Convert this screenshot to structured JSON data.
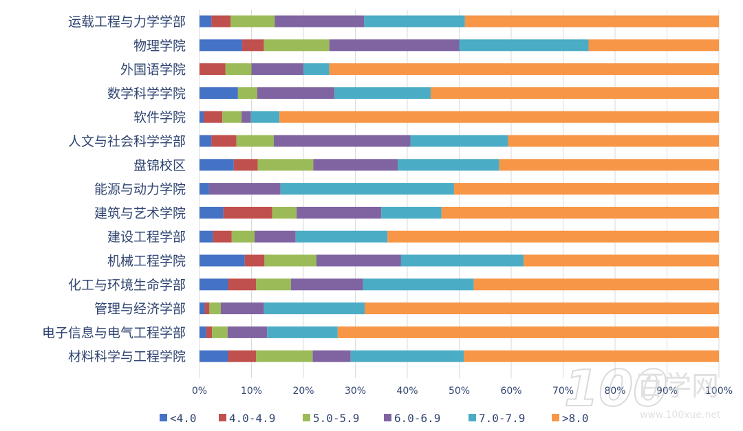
{
  "chart_data": {
    "type": "bar",
    "orientation": "horizontal",
    "stacked": "percent",
    "categories": [
      "运载工程与力学学部",
      "物理学院",
      "外国语学院",
      "数学科学学院",
      "软件学院",
      "人文与社会科学学部",
      "盘锦校区",
      "能源与动力学院",
      "建筑与艺术学院",
      "建设工程学部",
      "机械工程学院",
      "化工与环境生命学部",
      "管理与经济学部",
      "电子信息与电气工程学部",
      "材料科学与工程学院"
    ],
    "series": [
      {
        "name": "<4.0",
        "color": "#4472c4",
        "values": [
          2.3,
          8.2,
          0,
          7.4,
          0.8,
          2.3,
          6.6,
          1.8,
          4.6,
          2.6,
          8.7,
          5.5,
          1,
          1.3,
          5.5
        ]
      },
      {
        "name": "4.0-4.9",
        "color": "#c0504d",
        "values": [
          3.7,
          4.2,
          5.0,
          0,
          3.6,
          4.8,
          4.6,
          0,
          9.4,
          3.6,
          3.8,
          5.4,
          0.9,
          1.1,
          5.4
        ]
      },
      {
        "name": "5.0-5.9",
        "color": "#9bbb59",
        "values": [
          8.5,
          12.6,
          5.0,
          3.7,
          3.7,
          7.2,
          10.7,
          0,
          4.7,
          4.4,
          10.0,
          6.7,
          2.2,
          3.0,
          10.9
        ]
      },
      {
        "name": "6.0-6.9",
        "color": "#8064a2",
        "values": [
          17.2,
          25.0,
          10.0,
          14.9,
          1.8,
          26.3,
          16.3,
          13.8,
          16.3,
          7.9,
          16.3,
          13.9,
          8.3,
          7.6,
          7.3
        ]
      },
      {
        "name": "7.0-7.9",
        "color": "#4bacc6",
        "values": [
          19.4,
          24.9,
          5.0,
          18.5,
          5.5,
          18.8,
          19.5,
          33.4,
          11.6,
          17.7,
          23.6,
          21.3,
          19.4,
          13.6,
          21.8
        ]
      },
      {
        "name": ">8.0",
        "color": "#f79646",
        "values": [
          48.9,
          25.1,
          75.0,
          55.5,
          84.6,
          40.6,
          42.3,
          51.0,
          53.4,
          63.8,
          37.6,
          47.2,
          68.2,
          73.4,
          49.1
        ]
      }
    ],
    "xlim": [
      0,
      100
    ],
    "x_ticks": [
      "0%",
      "10%",
      "20%",
      "30%",
      "40%",
      "50%",
      "60%",
      "70%",
      "80%",
      "90%",
      "100%"
    ],
    "grid": "vertical",
    "legend": "bottom"
  },
  "watermark": {
    "logo": "100",
    "brand": "百学网",
    "url": "www.100xue.net"
  }
}
